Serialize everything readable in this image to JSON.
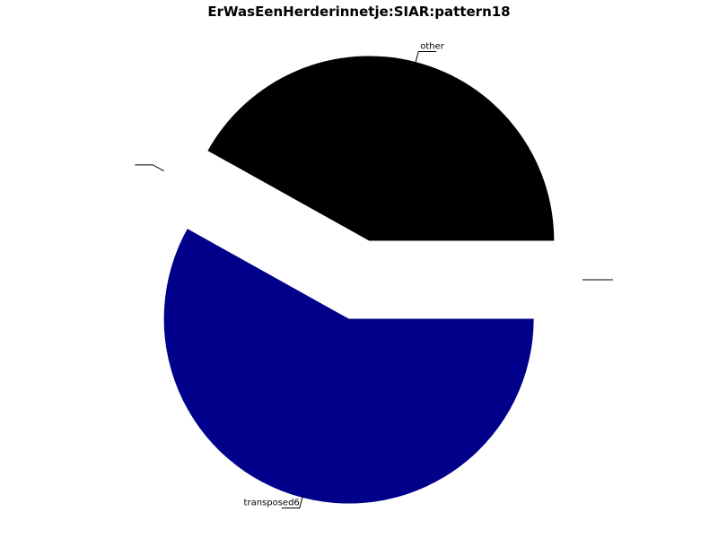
{
  "chart_data": {
    "type": "pie",
    "title": "ErWasEenHerderinnetje:SIAR:pattern18",
    "start_angle_deg": 0,
    "direction": "counterclockwise",
    "slices": [
      {
        "label": "other",
        "value": 0.419,
        "color": "#000000"
      },
      {
        "label": "",
        "value": 0.0,
        "color": "#ffffff"
      },
      {
        "label": "transposed6",
        "value": 0.581,
        "color": "#00008b"
      },
      {
        "label": "",
        "value": 0.0,
        "color": "#ffffff"
      }
    ]
  }
}
